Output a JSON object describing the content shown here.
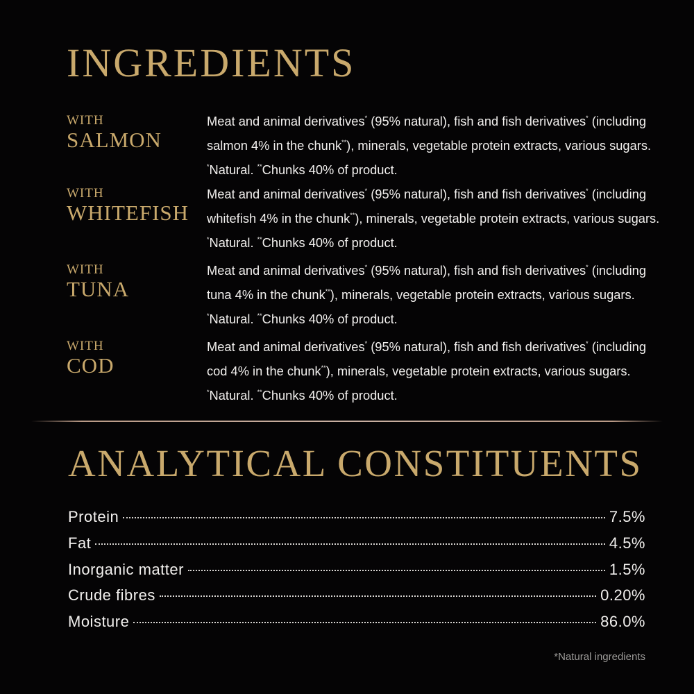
{
  "ingredients": {
    "title": "INGREDIENTS",
    "items": [
      {
        "with": "WITH",
        "fish": "SALMON",
        "parts": [
          "Meat and animal derivatives",
          "*",
          " (95% natural), fish and fish derivatives",
          "*",
          " (including salmon 4% in the chunk",
          "**",
          "), minerals, vegetable protein extracts, various sugars. ",
          "*",
          "Natural. ",
          "**",
          "Chunks 40% of product."
        ]
      },
      {
        "with": "WITH",
        "fish": "WHITEFISH",
        "parts": [
          "Meat and animal derivatives",
          "*",
          " (95% natural), fish and fish derivatives",
          "*",
          " (including whitefish 4% in the chunk",
          "**",
          "), minerals, vegetable protein extracts, various sugars. ",
          "*",
          "Natural. ",
          "**",
          "Chunks 40% of product."
        ]
      },
      {
        "with": "WITH",
        "fish": "TUNA",
        "parts": [
          "Meat and animal derivatives",
          "*",
          " (95% natural), fish and fish derivatives",
          "*",
          " (including tuna 4% in the chunk",
          "**",
          "), minerals, vegetable protein extracts, various sugars. ",
          "*",
          "Natural. ",
          "**",
          "Chunks 40% of product."
        ]
      },
      {
        "with": "WITH",
        "fish": "COD",
        "parts": [
          "Meat and animal derivatives",
          "*",
          " (95% natural), fish and fish derivatives",
          "*",
          " (including cod 4% in the chunk",
          "**",
          "), minerals, vegetable protein extracts, various sugars. ",
          "*",
          "Natural. ",
          "**",
          "Chunks 40% of product."
        ]
      }
    ]
  },
  "analytical": {
    "title": "ANALYTICAL CONSTITUENTS",
    "rows": [
      {
        "label": "Protein",
        "value": "7.5%"
      },
      {
        "label": "Fat",
        "value": "4.5%"
      },
      {
        "label": "Inorganic matter",
        "value": "1.5%"
      },
      {
        "label": "Crude fibres",
        "value": "0.20%"
      },
      {
        "label": "Moisture",
        "value": "86.0%"
      }
    ]
  },
  "footnote": "*Natural ingredients",
  "colors": {
    "gold": "#c9a96c",
    "background": "#050405",
    "text": "#f2f0ee"
  }
}
